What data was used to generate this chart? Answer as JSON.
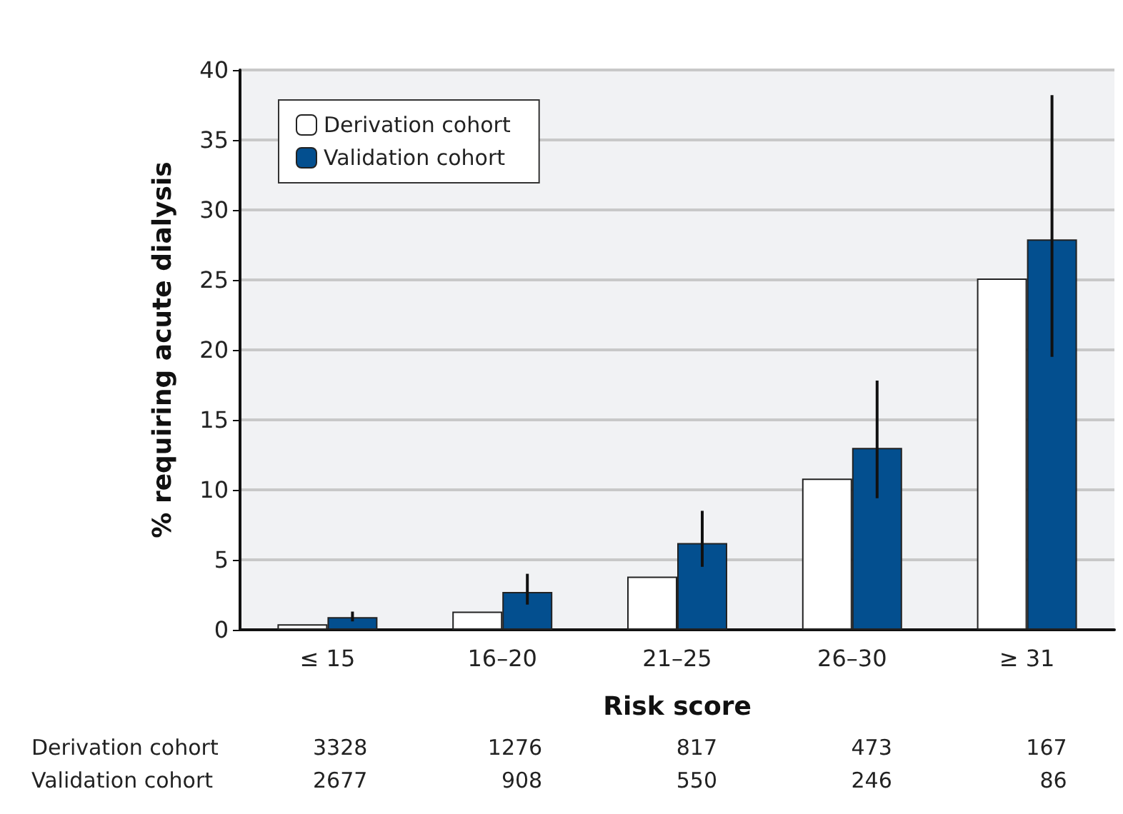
{
  "chart_data": {
    "type": "bar",
    "xlabel": "Risk score",
    "ylabel": "% requiring acute dialysis",
    "categories": [
      "≤ 15",
      "16–20",
      "21–25",
      "26–30",
      "≥ 31"
    ],
    "series": [
      {
        "name": "Derivation cohort",
        "color": "#ffffff",
        "values": [
          0.4,
          1.3,
          3.8,
          10.8,
          25.1
        ]
      },
      {
        "name": "Validation cohort",
        "color": "#034f8f",
        "values": [
          0.9,
          2.7,
          6.2,
          13.0,
          27.9
        ],
        "errors": [
          [
            0.6,
            1.3
          ],
          [
            1.8,
            4.0
          ],
          [
            4.5,
            8.5
          ],
          [
            9.4,
            17.8
          ],
          [
            19.5,
            38.2
          ]
        ]
      }
    ],
    "ylim": [
      0,
      40
    ],
    "yticks": [
      0,
      5,
      10,
      15,
      20,
      25,
      30,
      35,
      40
    ],
    "grid": "y",
    "legend": "top left",
    "annotations": [
      "Derivation cohort 3328 1276 817 473 167",
      "Validation cohort 2677 908 550 246 86"
    ]
  }
}
